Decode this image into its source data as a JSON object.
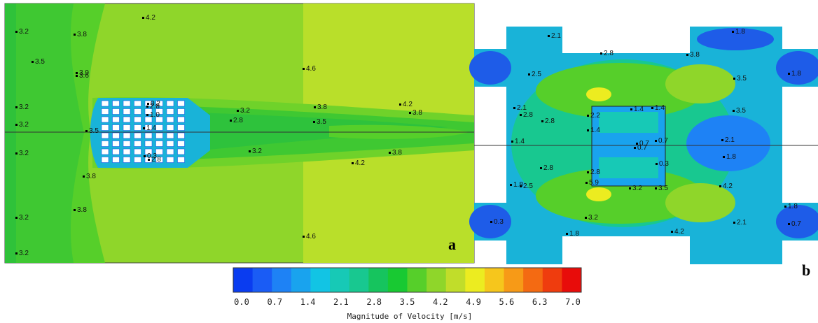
{
  "panels": {
    "a": {
      "letter": "a",
      "labels": [
        "3.2",
        "3.8",
        "4.2",
        "3.5",
        "3.9",
        "3.6",
        "4.6",
        "3.2",
        "2.8",
        "1.0",
        "3.2",
        "2.8",
        "3.8",
        "4.2",
        "3.8",
        "3.2",
        "3.5",
        "1.4",
        "3.5",
        "3.2",
        "0.3",
        "2.8",
        "3.8",
        "4.2",
        "3.2",
        "3.8",
        "3.8",
        "3.2",
        "4.6",
        "3.2",
        "0.2"
      ]
    },
    "b": {
      "letter": "b",
      "labels": [
        "2.1",
        "1.8",
        "2.8",
        "3.8",
        "2.5",
        "3.5",
        "1.8",
        "2.1",
        "2.8",
        "2.8",
        "1.4",
        "1.4",
        "2.2",
        "3.5",
        "1.4",
        "0.7",
        "0.7",
        "0.7",
        "2.1",
        "1.4",
        "1.8",
        "2.8",
        "0.3",
        "2.8",
        "1.8",
        "2.5",
        "5.9",
        "3.2",
        "3.5",
        "4.2",
        "1.8",
        "0.3",
        "3.2",
        "2.1",
        "0.7",
        "1.8",
        "4.2"
      ]
    }
  },
  "colorbar": {
    "title": "Magnitude of Velocity [m/s]",
    "ticks": [
      "0.0",
      "0.7",
      "1.4",
      "2.1",
      "2.8",
      "3.5",
      "4.2",
      "4.9",
      "5.6",
      "6.3",
      "7.0"
    ],
    "colors": [
      "#0a3cf0",
      "#1a5cf5",
      "#1e82f5",
      "#19a3ee",
      "#12c4e4",
      "#17c9b6",
      "#18c890",
      "#16c45e",
      "#18c932",
      "#56cf2a",
      "#8fd62a",
      "#c1dd2a",
      "#ecec20",
      "#f6c61c",
      "#f79a17",
      "#f46a12",
      "#ef3c0e",
      "#e80c0a"
    ]
  }
}
